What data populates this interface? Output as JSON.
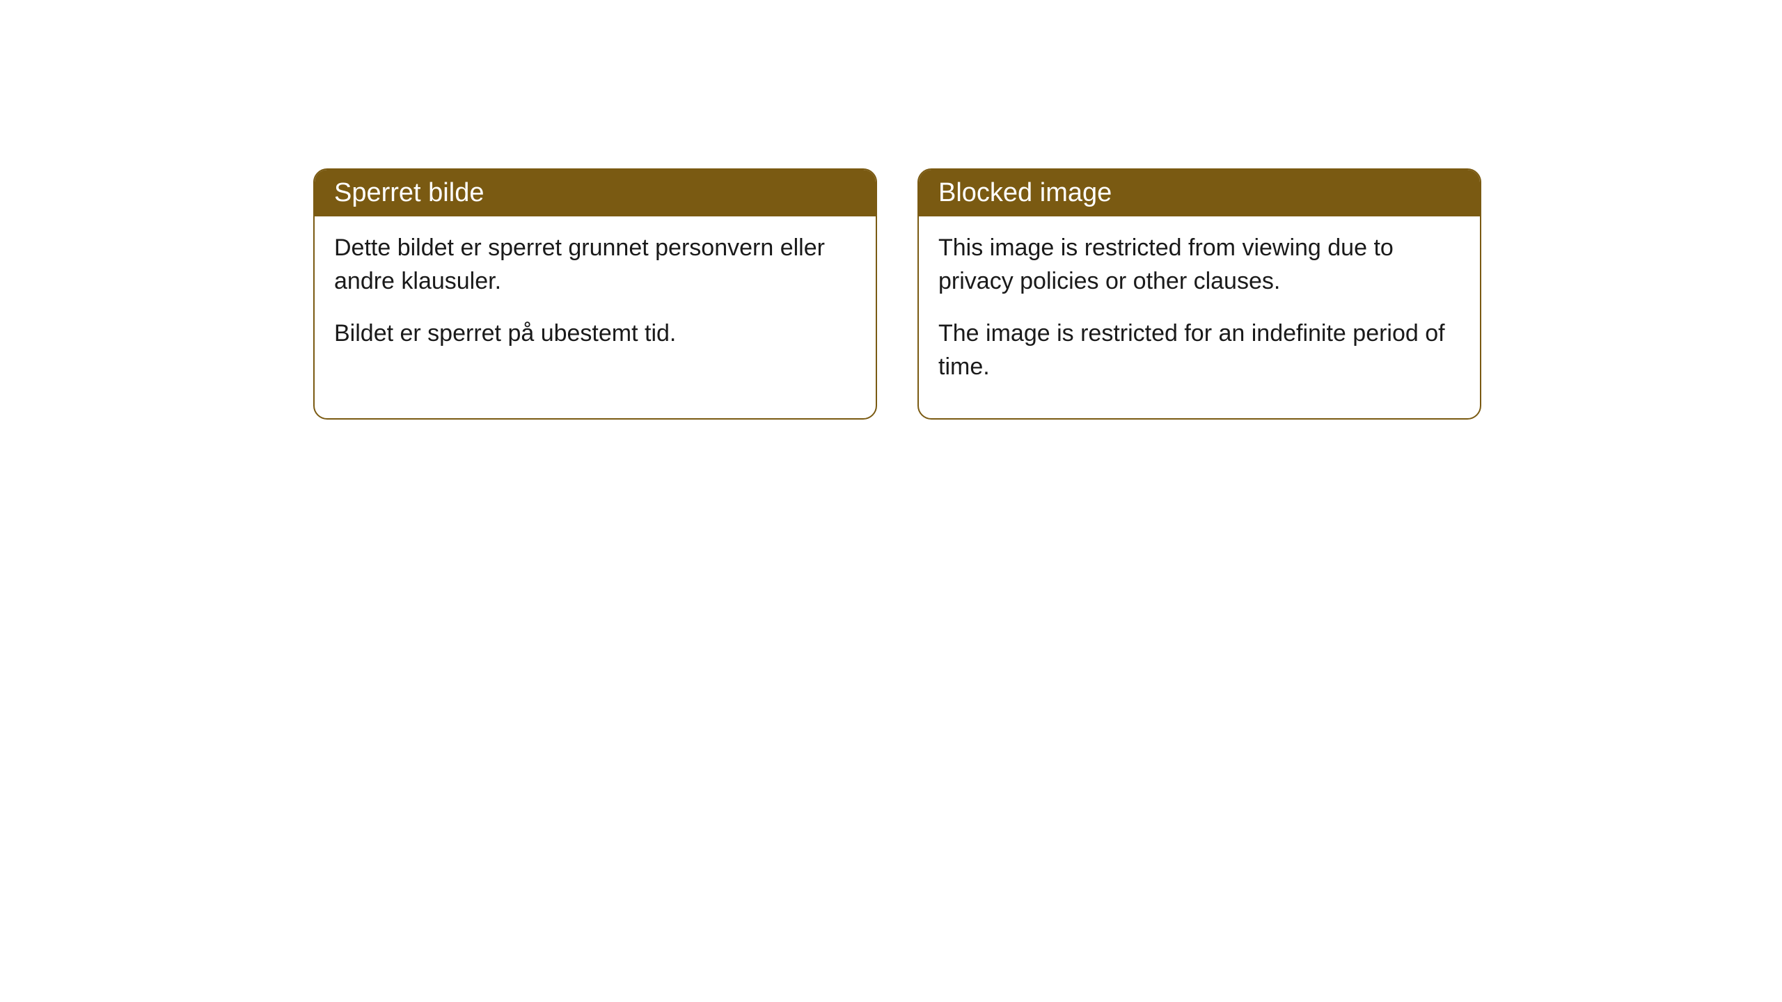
{
  "cards": [
    {
      "title": "Sperret bilde",
      "paragraph1": "Dette bildet er sperret grunnet personvern eller andre klausuler.",
      "paragraph2": "Bildet er sperret på ubestemt tid."
    },
    {
      "title": "Blocked image",
      "paragraph1": "This image is restricted from viewing due to privacy policies or other clauses.",
      "paragraph2": "The image is restricted for an indefinite period of time."
    }
  ],
  "style": {
    "header_bg": "#7a5a12",
    "header_text_color": "#ffffff",
    "border_color": "#7a5a12",
    "body_text_color": "#1a1a1a",
    "background_color": "#ffffff",
    "border_radius": 20,
    "header_fontsize": 38,
    "body_fontsize": 34
  }
}
